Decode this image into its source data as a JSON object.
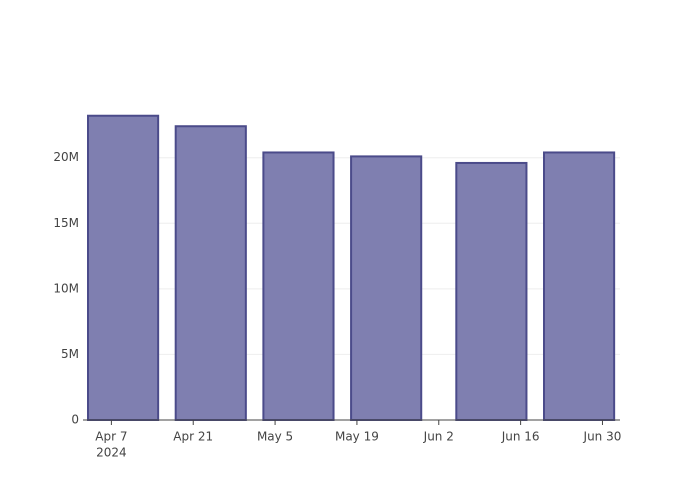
{
  "chart_data": {
    "type": "bar",
    "x": [
      "2024-04-09",
      "2024-04-24",
      "2024-05-09",
      "2024-05-24",
      "2024-06-11",
      "2024-06-26"
    ],
    "values": [
      23200000,
      22400000,
      20400000,
      20100000,
      19600000,
      20400000
    ],
    "color": "#7f7fb0",
    "edge_color": "#4b4b8a",
    "xlim": [
      "2024-04-03",
      "2024-07-03"
    ],
    "xticks": [
      {
        "value": "2024-04-07",
        "label": "Apr 7",
        "sublabel": "2024"
      },
      {
        "value": "2024-04-21",
        "label": "Apr 21"
      },
      {
        "value": "2024-05-05",
        "label": "May 5"
      },
      {
        "value": "2024-05-19",
        "label": "May 19"
      },
      {
        "value": "2024-06-02",
        "label": "Jun 2"
      },
      {
        "value": "2024-06-16",
        "label": "Jun 16"
      },
      {
        "value": "2024-06-30",
        "label": "Jun 30"
      }
    ],
    "ylim": [
      0,
      24400000
    ],
    "yticks": [
      0,
      {
        "value": 5000000,
        "label": "5M"
      },
      {
        "value": 10000000,
        "label": "10M"
      },
      {
        "value": 15000000,
        "label": "15M"
      },
      {
        "value": 20000000,
        "label": "20M"
      }
    ],
    "grid": true
  }
}
